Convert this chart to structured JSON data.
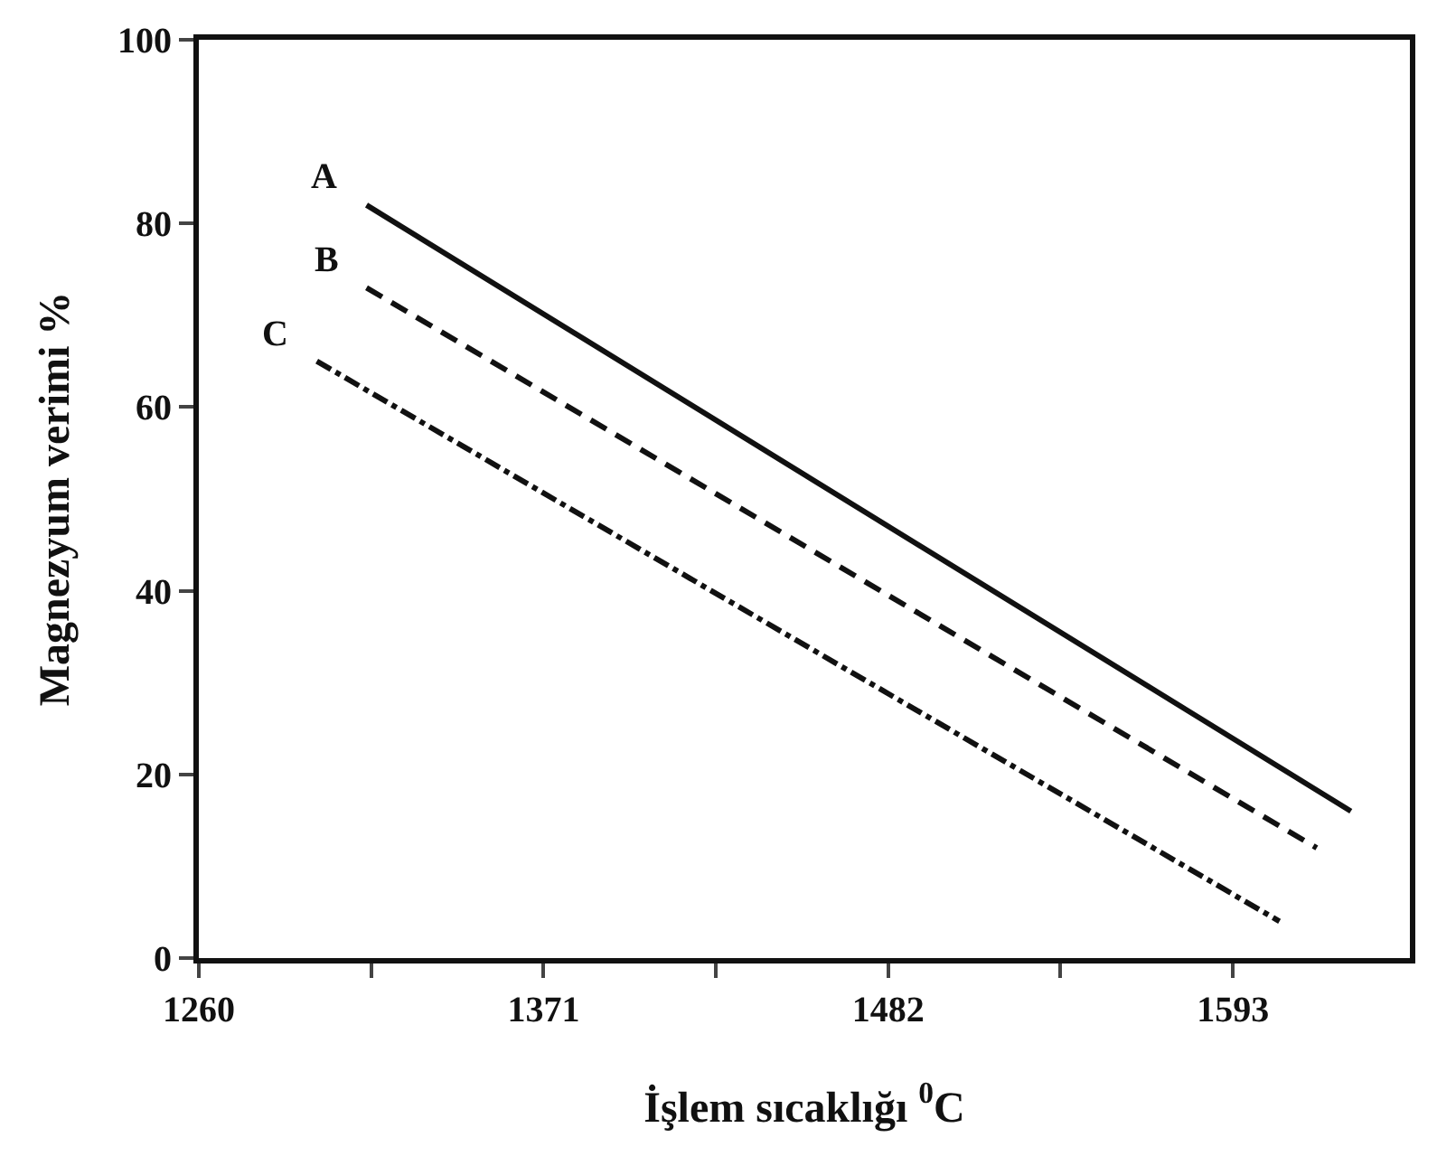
{
  "chart_data": {
    "type": "line",
    "xlabel": "İşlem sıcaklığı $^{0}$C",
    "ylabel": "Magnezyum verimi %",
    "xlim": [
      1260,
      1650
    ],
    "xticks": [
      1260,
      {
        "value": 1315.5,
        "label": null
      },
      1371,
      {
        "value": 1426.5,
        "label": null
      },
      1482,
      {
        "value": 1537.5,
        "label": null
      },
      1593
    ],
    "ylim": [
      0,
      100
    ],
    "yticks": [
      0,
      20,
      40,
      60,
      80,
      100
    ],
    "series": [
      {
        "name": "A",
        "color": "#111111",
        "line_style": "solid",
        "x": [
          1314,
          1631
        ],
        "values": [
          82,
          16
        ]
      },
      {
        "name": "B",
        "color": "#111111",
        "line_style": "dashed",
        "x": [
          1314,
          1620
        ],
        "values": [
          73,
          12
        ]
      },
      {
        "name": "C",
        "color": "#111111",
        "line_style": "dashdot",
        "x": [
          1298,
          1608
        ],
        "values": [
          65,
          4
        ]
      }
    ]
  }
}
